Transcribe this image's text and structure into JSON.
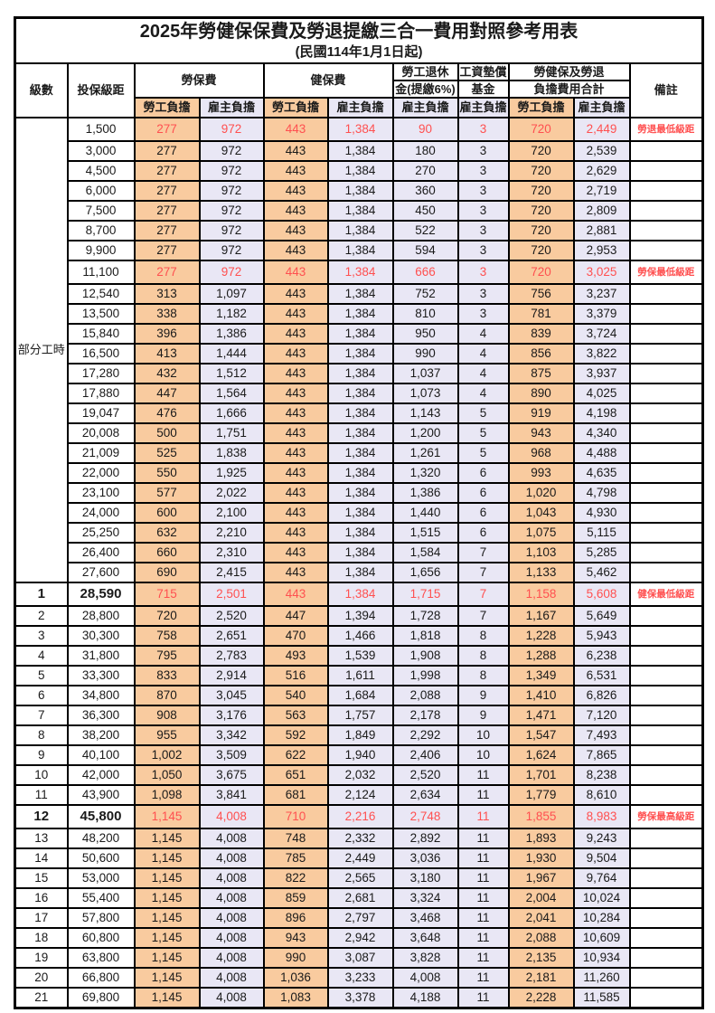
{
  "title": "2025年勞健保保費及勞退提繳三合一費用對照參考用表",
  "subtitle": "(民國114年1月1日起)",
  "colors": {
    "employee_col_bg": "#F9CB9F",
    "employer_col_bg": "#E9E7F5",
    "highlight_red": "#FF5050",
    "border": "#000000",
    "text": "#1a1a1a"
  },
  "header": {
    "level": "級數",
    "bracket": "投保級距",
    "labor_fee": "勞保費",
    "health_fee": "健保費",
    "pension_l1": "勞工退休",
    "pension_l2": "金(提繳6%)",
    "wage_fund_l1": "工資墊償",
    "wage_fund_l2": "基金",
    "total_l1": "勞健保及勞退",
    "total_l2": "負擔費用合計",
    "note": "備註",
    "employee": "勞工負擔",
    "employer": "雇主負擔"
  },
  "table": {
    "part_time_label": "部分工時",
    "part_time_rowspan": 23,
    "value_col_classes": [
      "emp",
      "er",
      "emp",
      "er",
      "er",
      "er",
      "emp",
      "er"
    ],
    "rows": [
      {
        "level": "",
        "bracket": "1,500",
        "v": [
          "277",
          "972",
          "443",
          "1,384",
          "90",
          "3",
          "720",
          "2,449"
        ],
        "note": "勞退最低級距",
        "red": true,
        "bold": false
      },
      {
        "level": "",
        "bracket": "3,000",
        "v": [
          "277",
          "972",
          "443",
          "1,384",
          "180",
          "3",
          "720",
          "2,539"
        ],
        "note": "",
        "red": false,
        "bold": false
      },
      {
        "level": "",
        "bracket": "4,500",
        "v": [
          "277",
          "972",
          "443",
          "1,384",
          "270",
          "3",
          "720",
          "2,629"
        ],
        "note": "",
        "red": false,
        "bold": false
      },
      {
        "level": "",
        "bracket": "6,000",
        "v": [
          "277",
          "972",
          "443",
          "1,384",
          "360",
          "3",
          "720",
          "2,719"
        ],
        "note": "",
        "red": false,
        "bold": false
      },
      {
        "level": "",
        "bracket": "7,500",
        "v": [
          "277",
          "972",
          "443",
          "1,384",
          "450",
          "3",
          "720",
          "2,809"
        ],
        "note": "",
        "red": false,
        "bold": false
      },
      {
        "level": "",
        "bracket": "8,700",
        "v": [
          "277",
          "972",
          "443",
          "1,384",
          "522",
          "3",
          "720",
          "2,881"
        ],
        "note": "",
        "red": false,
        "bold": false
      },
      {
        "level": "",
        "bracket": "9,900",
        "v": [
          "277",
          "972",
          "443",
          "1,384",
          "594",
          "3",
          "720",
          "2,953"
        ],
        "note": "",
        "red": false,
        "bold": false
      },
      {
        "level": "",
        "bracket": "11,100",
        "v": [
          "277",
          "972",
          "443",
          "1,384",
          "666",
          "3",
          "720",
          "3,025"
        ],
        "note": "勞保最低級距",
        "red": true,
        "bold": false
      },
      {
        "level": "",
        "bracket": "12,540",
        "v": [
          "313",
          "1,097",
          "443",
          "1,384",
          "752",
          "3",
          "756",
          "3,237"
        ],
        "note": "",
        "red": false,
        "bold": false
      },
      {
        "level": "",
        "bracket": "13,500",
        "v": [
          "338",
          "1,182",
          "443",
          "1,384",
          "810",
          "3",
          "781",
          "3,379"
        ],
        "note": "",
        "red": false,
        "bold": false
      },
      {
        "level": "",
        "bracket": "15,840",
        "v": [
          "396",
          "1,386",
          "443",
          "1,384",
          "950",
          "4",
          "839",
          "3,724"
        ],
        "note": "",
        "red": false,
        "bold": false
      },
      {
        "level": "",
        "bracket": "16,500",
        "v": [
          "413",
          "1,444",
          "443",
          "1,384",
          "990",
          "4",
          "856",
          "3,822"
        ],
        "note": "",
        "red": false,
        "bold": false
      },
      {
        "level": "",
        "bracket": "17,280",
        "v": [
          "432",
          "1,512",
          "443",
          "1,384",
          "1,037",
          "4",
          "875",
          "3,937"
        ],
        "note": "",
        "red": false,
        "bold": false
      },
      {
        "level": "",
        "bracket": "17,880",
        "v": [
          "447",
          "1,564",
          "443",
          "1,384",
          "1,073",
          "4",
          "890",
          "4,025"
        ],
        "note": "",
        "red": false,
        "bold": false
      },
      {
        "level": "",
        "bracket": "19,047",
        "v": [
          "476",
          "1,666",
          "443",
          "1,384",
          "1,143",
          "5",
          "919",
          "4,198"
        ],
        "note": "",
        "red": false,
        "bold": false
      },
      {
        "level": "",
        "bracket": "20,008",
        "v": [
          "500",
          "1,751",
          "443",
          "1,384",
          "1,200",
          "5",
          "943",
          "4,340"
        ],
        "note": "",
        "red": false,
        "bold": false
      },
      {
        "level": "",
        "bracket": "21,009",
        "v": [
          "525",
          "1,838",
          "443",
          "1,384",
          "1,261",
          "5",
          "968",
          "4,488"
        ],
        "note": "",
        "red": false,
        "bold": false
      },
      {
        "level": "",
        "bracket": "22,000",
        "v": [
          "550",
          "1,925",
          "443",
          "1,384",
          "1,320",
          "6",
          "993",
          "4,635"
        ],
        "note": "",
        "red": false,
        "bold": false
      },
      {
        "level": "",
        "bracket": "23,100",
        "v": [
          "577",
          "2,022",
          "443",
          "1,384",
          "1,386",
          "6",
          "1,020",
          "4,798"
        ],
        "note": "",
        "red": false,
        "bold": false
      },
      {
        "level": "",
        "bracket": "24,000",
        "v": [
          "600",
          "2,100",
          "443",
          "1,384",
          "1,440",
          "6",
          "1,043",
          "4,930"
        ],
        "note": "",
        "red": false,
        "bold": false
      },
      {
        "level": "",
        "bracket": "25,250",
        "v": [
          "632",
          "2,210",
          "443",
          "1,384",
          "1,515",
          "6",
          "1,075",
          "5,115"
        ],
        "note": "",
        "red": false,
        "bold": false
      },
      {
        "level": "",
        "bracket": "26,400",
        "v": [
          "660",
          "2,310",
          "443",
          "1,384",
          "1,584",
          "7",
          "1,103",
          "5,285"
        ],
        "note": "",
        "red": false,
        "bold": false
      },
      {
        "level": "",
        "bracket": "27,600",
        "v": [
          "690",
          "2,415",
          "443",
          "1,384",
          "1,656",
          "7",
          "1,133",
          "5,462"
        ],
        "note": "",
        "red": false,
        "bold": false
      },
      {
        "level": "1",
        "bracket": "28,590",
        "v": [
          "715",
          "2,501",
          "443",
          "1,384",
          "1,715",
          "7",
          "1,158",
          "5,608"
        ],
        "note": "健保最低級距",
        "red": true,
        "bold": true
      },
      {
        "level": "2",
        "bracket": "28,800",
        "v": [
          "720",
          "2,520",
          "447",
          "1,394",
          "1,728",
          "7",
          "1,167",
          "5,649"
        ],
        "note": "",
        "red": false,
        "bold": false
      },
      {
        "level": "3",
        "bracket": "30,300",
        "v": [
          "758",
          "2,651",
          "470",
          "1,466",
          "1,818",
          "8",
          "1,228",
          "5,943"
        ],
        "note": "",
        "red": false,
        "bold": false
      },
      {
        "level": "4",
        "bracket": "31,800",
        "v": [
          "795",
          "2,783",
          "493",
          "1,539",
          "1,908",
          "8",
          "1,288",
          "6,238"
        ],
        "note": "",
        "red": false,
        "bold": false
      },
      {
        "level": "5",
        "bracket": "33,300",
        "v": [
          "833",
          "2,914",
          "516",
          "1,611",
          "1,998",
          "8",
          "1,349",
          "6,531"
        ],
        "note": "",
        "red": false,
        "bold": false
      },
      {
        "level": "6",
        "bracket": "34,800",
        "v": [
          "870",
          "3,045",
          "540",
          "1,684",
          "2,088",
          "9",
          "1,410",
          "6,826"
        ],
        "note": "",
        "red": false,
        "bold": false
      },
      {
        "level": "7",
        "bracket": "36,300",
        "v": [
          "908",
          "3,176",
          "563",
          "1,757",
          "2,178",
          "9",
          "1,471",
          "7,120"
        ],
        "note": "",
        "red": false,
        "bold": false
      },
      {
        "level": "8",
        "bracket": "38,200",
        "v": [
          "955",
          "3,342",
          "592",
          "1,849",
          "2,292",
          "10",
          "1,547",
          "7,493"
        ],
        "note": "",
        "red": false,
        "bold": false
      },
      {
        "level": "9",
        "bracket": "40,100",
        "v": [
          "1,002",
          "3,509",
          "622",
          "1,940",
          "2,406",
          "10",
          "1,624",
          "7,865"
        ],
        "note": "",
        "red": false,
        "bold": false
      },
      {
        "level": "10",
        "bracket": "42,000",
        "v": [
          "1,050",
          "3,675",
          "651",
          "2,032",
          "2,520",
          "11",
          "1,701",
          "8,238"
        ],
        "note": "",
        "red": false,
        "bold": false
      },
      {
        "level": "11",
        "bracket": "43,900",
        "v": [
          "1,098",
          "3,841",
          "681",
          "2,124",
          "2,634",
          "11",
          "1,779",
          "8,610"
        ],
        "note": "",
        "red": false,
        "bold": false
      },
      {
        "level": "12",
        "bracket": "45,800",
        "v": [
          "1,145",
          "4,008",
          "710",
          "2,216",
          "2,748",
          "11",
          "1,855",
          "8,983"
        ],
        "note": "勞保最高級距",
        "red": true,
        "bold": true
      },
      {
        "level": "13",
        "bracket": "48,200",
        "v": [
          "1,145",
          "4,008",
          "748",
          "2,332",
          "2,892",
          "11",
          "1,893",
          "9,243"
        ],
        "note": "",
        "red": false,
        "bold": false
      },
      {
        "level": "14",
        "bracket": "50,600",
        "v": [
          "1,145",
          "4,008",
          "785",
          "2,449",
          "3,036",
          "11",
          "1,930",
          "9,504"
        ],
        "note": "",
        "red": false,
        "bold": false
      },
      {
        "level": "15",
        "bracket": "53,000",
        "v": [
          "1,145",
          "4,008",
          "822",
          "2,565",
          "3,180",
          "11",
          "1,967",
          "9,764"
        ],
        "note": "",
        "red": false,
        "bold": false
      },
      {
        "level": "16",
        "bracket": "55,400",
        "v": [
          "1,145",
          "4,008",
          "859",
          "2,681",
          "3,324",
          "11",
          "2,004",
          "10,024"
        ],
        "note": "",
        "red": false,
        "bold": false
      },
      {
        "level": "17",
        "bracket": "57,800",
        "v": [
          "1,145",
          "4,008",
          "896",
          "2,797",
          "3,468",
          "11",
          "2,041",
          "10,284"
        ],
        "note": "",
        "red": false,
        "bold": false
      },
      {
        "level": "18",
        "bracket": "60,800",
        "v": [
          "1,145",
          "4,008",
          "943",
          "2,942",
          "3,648",
          "11",
          "2,088",
          "10,609"
        ],
        "note": "",
        "red": false,
        "bold": false
      },
      {
        "level": "19",
        "bracket": "63,800",
        "v": [
          "1,145",
          "4,008",
          "990",
          "3,087",
          "3,828",
          "11",
          "2,135",
          "10,934"
        ],
        "note": "",
        "red": false,
        "bold": false
      },
      {
        "level": "20",
        "bracket": "66,800",
        "v": [
          "1,145",
          "4,008",
          "1,036",
          "3,233",
          "4,008",
          "11",
          "2,181",
          "11,260"
        ],
        "note": "",
        "red": false,
        "bold": false
      },
      {
        "level": "21",
        "bracket": "69,800",
        "v": [
          "1,145",
          "4,008",
          "1,083",
          "3,378",
          "4,188",
          "11",
          "2,228",
          "11,585"
        ],
        "note": "",
        "red": false,
        "bold": false
      }
    ]
  }
}
